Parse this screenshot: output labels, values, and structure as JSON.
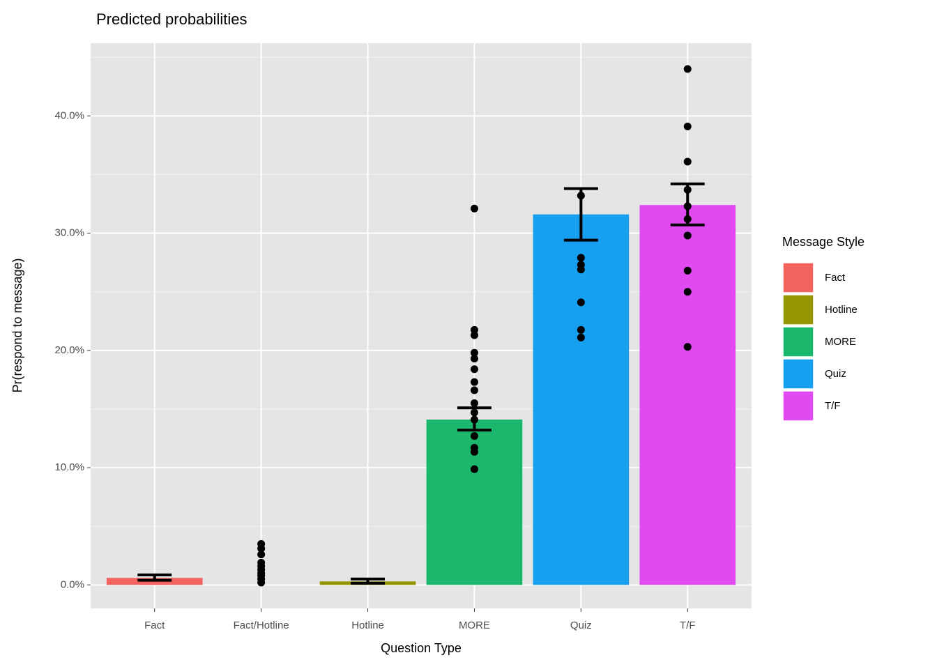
{
  "chart_data": {
    "type": "bar",
    "title": "Predicted probabilities",
    "x_label": "Question Type",
    "y_label": "Pr(respond to message)",
    "categories": [
      "Fact",
      "Fact/Hotline",
      "Hotline",
      "MORE",
      "Quiz",
      "T/F"
    ],
    "values": [
      0.6,
      null,
      0.3,
      14.1,
      31.6,
      32.4
    ],
    "colors": [
      "#F2635F",
      null,
      "#939600",
      "#1BB76C",
      "#179FF0",
      "#DF4BF0"
    ],
    "error_low": [
      0.4,
      null,
      0.15,
      13.2,
      29.4,
      30.7
    ],
    "error_high": [
      0.85,
      null,
      0.5,
      15.1,
      33.8,
      34.2
    ],
    "points": [
      [],
      [
        3.5,
        3.1,
        2.6,
        1.9,
        1.6,
        1.3,
        1.0,
        0.8,
        0.5,
        0.2
      ],
      [],
      [
        32.1,
        21.75,
        21.3,
        19.8,
        19.3,
        18.4,
        17.3,
        16.6,
        15.5,
        14.7,
        14.1,
        12.7,
        11.7,
        11.35,
        9.87
      ],
      [
        33.2,
        27.9,
        27.3,
        26.9,
        24.1,
        21.75,
        21.1
      ],
      [
        44.0,
        39.1,
        36.1,
        33.7,
        32.3,
        31.2,
        29.8,
        26.8,
        25.0,
        20.3
      ]
    ],
    "ylim": [
      -2.0,
      46.2
    ],
    "yticks": [
      {
        "value": 0,
        "label": "0.0%"
      },
      {
        "value": 10,
        "label": "10.0%"
      },
      {
        "value": 20,
        "label": "20.0%"
      },
      {
        "value": 30,
        "label": "30.0%"
      },
      {
        "value": 40,
        "label": "40.0%"
      }
    ],
    "minor_yticks": [
      5,
      15,
      25,
      35,
      45
    ],
    "grid": true,
    "legend": {
      "title": "Message Style",
      "position": "right",
      "items": [
        {
          "name": "Fact",
          "color": "#F2635F"
        },
        {
          "name": "Hotline",
          "color": "#939600"
        },
        {
          "name": "MORE",
          "color": "#1BB76C"
        },
        {
          "name": "Quiz",
          "color": "#179FF0"
        },
        {
          "name": "T/F",
          "color": "#DF4BF0"
        }
      ]
    }
  }
}
